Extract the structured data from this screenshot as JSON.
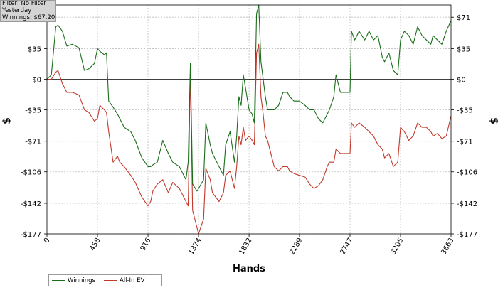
{
  "filter": {
    "line1": "Filter: No Filter",
    "line2": "Yesterday",
    "line3": "Winnings: $67.20"
  },
  "legend": {
    "items": [
      {
        "label": "Winnings",
        "color": "#1a6e1a"
      },
      {
        "label": "All-In EV",
        "color": "#c0392b"
      }
    ]
  },
  "chart_data": {
    "type": "line",
    "xlabel": "Hands",
    "ylabel": "$",
    "x_ticks": [
      0,
      458,
      916,
      1374,
      1832,
      2289,
      2747,
      3205,
      3663
    ],
    "y_ticks": [
      71,
      35,
      0,
      -35,
      -71,
      -106,
      -142,
      -177
    ],
    "y_tick_labels": [
      "$71",
      "$35",
      "$0",
      "-$35",
      "-$71",
      "-$106",
      "-$142",
      "-$177"
    ],
    "xlim": [
      0,
      3663
    ],
    "ylim": [
      -177,
      85
    ],
    "grid": true,
    "series": [
      {
        "name": "Winnings",
        "color": "#1a6e1a",
        "x": [
          0,
          40,
          80,
          100,
          140,
          180,
          230,
          290,
          340,
          380,
          430,
          458,
          480,
          520,
          540,
          560,
          600,
          640,
          660,
          700,
          760,
          800,
          860,
          916,
          940,
          960,
          1000,
          1050,
          1100,
          1140,
          1200,
          1220,
          1240,
          1260,
          1280,
          1300,
          1320,
          1360,
          1374,
          1420,
          1440,
          1480,
          1500,
          1560,
          1600,
          1620,
          1660,
          1700,
          1720,
          1740,
          1760,
          1780,
          1800,
          1832,
          1860,
          1880,
          1900,
          1920,
          1940,
          1960,
          1980,
          2000,
          2060,
          2100,
          2140,
          2180,
          2200,
          2240,
          2289,
          2340,
          2380,
          2420,
          2460,
          2500,
          2540,
          2560,
          2600,
          2620,
          2660,
          2700,
          2747,
          2760,
          2790,
          2830,
          2880,
          2920,
          2960,
          3000,
          3040,
          3060,
          3100,
          3140,
          3180,
          3205,
          3240,
          3280,
          3320,
          3360,
          3400,
          3440,
          3480,
          3500,
          3540,
          3580,
          3620,
          3663
        ],
        "y": [
          0,
          5,
          60,
          62,
          55,
          38,
          40,
          36,
          10,
          12,
          18,
          35,
          32,
          28,
          30,
          -25,
          -32,
          -40,
          -45,
          -55,
          -60,
          -70,
          -90,
          -100,
          -100,
          -98,
          -95,
          -70,
          -85,
          -95,
          -100,
          -105,
          -110,
          -115,
          -95,
          18,
          -120,
          -128,
          -125,
          -115,
          -50,
          -75,
          -85,
          -100,
          -110,
          -75,
          -60,
          -95,
          -65,
          -20,
          -30,
          5,
          -10,
          -35,
          -40,
          -50,
          75,
          85,
          20,
          0,
          -20,
          -35,
          -35,
          -30,
          -15,
          -15,
          -20,
          -25,
          -25,
          -30,
          -35,
          -35,
          -45,
          -50,
          -40,
          -35,
          -20,
          5,
          -15,
          -15,
          -15,
          55,
          45,
          55,
          45,
          55,
          45,
          50,
          25,
          20,
          30,
          10,
          5,
          45,
          55,
          50,
          40,
          60,
          50,
          45,
          40,
          50,
          45,
          40,
          55,
          67.2
        ]
      },
      {
        "name": "All-In EV",
        "color": "#c0392b",
        "x": [
          0,
          40,
          80,
          100,
          140,
          180,
          230,
          290,
          340,
          380,
          430,
          458,
          480,
          520,
          540,
          560,
          600,
          640,
          660,
          700,
          760,
          800,
          860,
          916,
          940,
          960,
          1000,
          1050,
          1100,
          1140,
          1200,
          1220,
          1240,
          1260,
          1280,
          1300,
          1320,
          1360,
          1374,
          1420,
          1440,
          1480,
          1500,
          1560,
          1600,
          1620,
          1660,
          1700,
          1720,
          1740,
          1760,
          1780,
          1800,
          1832,
          1860,
          1880,
          1900,
          1920,
          1940,
          1960,
          1980,
          2000,
          2060,
          2100,
          2140,
          2180,
          2200,
          2240,
          2289,
          2340,
          2380,
          2420,
          2460,
          2500,
          2540,
          2560,
          2600,
          2620,
          2660,
          2700,
          2747,
          2760,
          2790,
          2830,
          2880,
          2920,
          2960,
          3000,
          3040,
          3060,
          3100,
          3140,
          3180,
          3205,
          3240,
          3280,
          3320,
          3360,
          3400,
          3440,
          3480,
          3500,
          3540,
          3580,
          3620,
          3663
        ],
        "y": [
          0,
          0,
          8,
          10,
          -5,
          -15,
          -15,
          -18,
          -35,
          -38,
          -48,
          -45,
          -30,
          -35,
          -38,
          -60,
          -95,
          -88,
          -95,
          -100,
          -110,
          -118,
          -135,
          -145,
          -140,
          -128,
          -120,
          -115,
          -130,
          -118,
          -125,
          -130,
          -135,
          -140,
          -145,
          10,
          -150,
          -170,
          -177,
          -160,
          -102,
          -115,
          -130,
          -140,
          -130,
          -110,
          -105,
          -125,
          -100,
          -65,
          -75,
          -55,
          -70,
          -65,
          -70,
          -75,
          30,
          40,
          -20,
          -40,
          -65,
          -70,
          -100,
          -105,
          -100,
          -100,
          -105,
          -108,
          -110,
          -112,
          -120,
          -125,
          -122,
          -115,
          -100,
          -95,
          -95,
          -80,
          -85,
          -85,
          -85,
          -50,
          -55,
          -50,
          -55,
          -60,
          -65,
          -75,
          -80,
          -90,
          -85,
          -100,
          -95,
          -55,
          -60,
          -70,
          -65,
          -50,
          -55,
          -55,
          -60,
          -65,
          -62,
          -68,
          -65,
          -42
        ]
      }
    ]
  }
}
